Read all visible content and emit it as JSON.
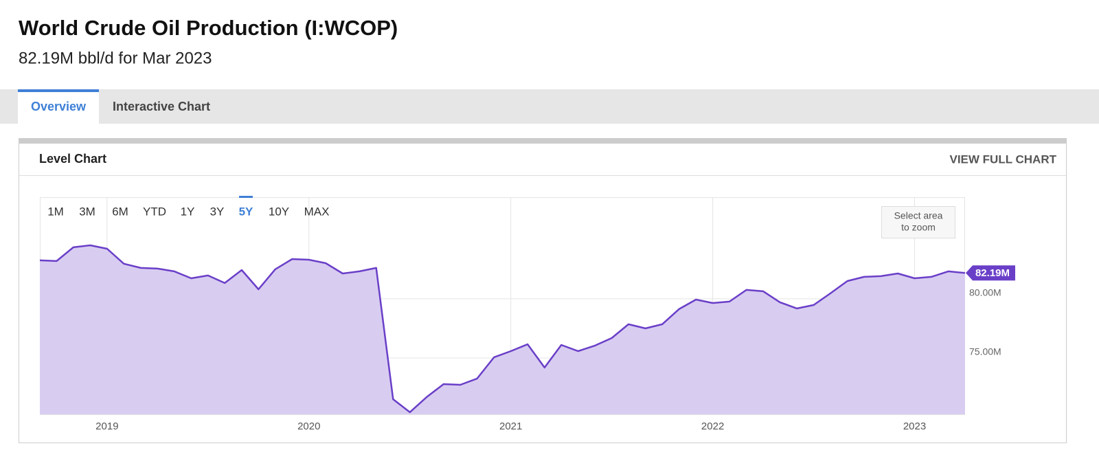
{
  "header": {
    "title": "World Crude Oil Production (I:WCOP)",
    "subtitle": "82.19M bbl/d for Mar 2023"
  },
  "tabs": [
    "Overview",
    "Interactive Chart"
  ],
  "card": {
    "title": "Level Chart",
    "action": "VIEW FULL CHART"
  },
  "ranges": [
    "1M",
    "3M",
    "6M",
    "YTD",
    "1Y",
    "3Y",
    "5Y",
    "10Y",
    "MAX"
  ],
  "active_range": "5Y",
  "zoom_hint": [
    "Select area",
    "to zoom"
  ],
  "chart_data": {
    "type": "area",
    "x": [
      2018.667,
      2018.75,
      2018.833,
      2018.917,
      2019.0,
      2019.083,
      2019.167,
      2019.25,
      2019.333,
      2019.417,
      2019.5,
      2019.583,
      2019.667,
      2019.75,
      2019.833,
      2019.917,
      2020.0,
      2020.083,
      2020.167,
      2020.25,
      2020.333,
      2020.417,
      2020.5,
      2020.583,
      2020.667,
      2020.75,
      2020.833,
      2020.917,
      2021.0,
      2021.083,
      2021.167,
      2021.25,
      2021.333,
      2021.417,
      2021.5,
      2021.583,
      2021.667,
      2021.75,
      2021.833,
      2021.917,
      2022.0,
      2022.083,
      2022.167,
      2022.25,
      2022.333,
      2022.417,
      2022.5,
      2022.583,
      2022.667,
      2022.75,
      2022.833,
      2022.917,
      2023.0,
      2023.083,
      2023.167,
      2023.25
    ],
    "series": [
      {
        "name": "World Crude Oil Production",
        "color": "#6a3fc8",
        "fill": "#d8cdf1",
        "values": [
          83.26,
          83.2,
          84.36,
          84.53,
          84.24,
          82.97,
          82.62,
          82.56,
          82.33,
          81.74,
          81.98,
          81.34,
          82.44,
          80.81,
          82.5,
          83.37,
          83.31,
          83.02,
          82.15,
          82.33,
          82.62,
          71.51,
          70.41,
          71.69,
          72.79,
          72.73,
          73.26,
          75.06,
          75.58,
          76.16,
          74.19,
          76.1,
          75.58,
          76.05,
          76.69,
          77.85,
          77.5,
          77.85,
          79.13,
          79.94,
          79.65,
          79.77,
          80.76,
          80.64,
          79.71,
          79.19,
          79.48,
          80.47,
          81.51,
          81.86,
          81.92,
          82.15,
          81.74,
          81.86,
          82.33,
          82.19
        ]
      }
    ],
    "last_label": "82.19M",
    "xlim": [
      2018.667,
      2023.25
    ],
    "xticks": [
      2019,
      2020,
      2021,
      2022,
      2023
    ],
    "ylim": [
      70.23,
      88.6
    ],
    "yticks": [
      {
        "value": 75,
        "label": "75.00M"
      },
      {
        "value": 80,
        "label": "80.00M"
      }
    ],
    "grid": true
  }
}
